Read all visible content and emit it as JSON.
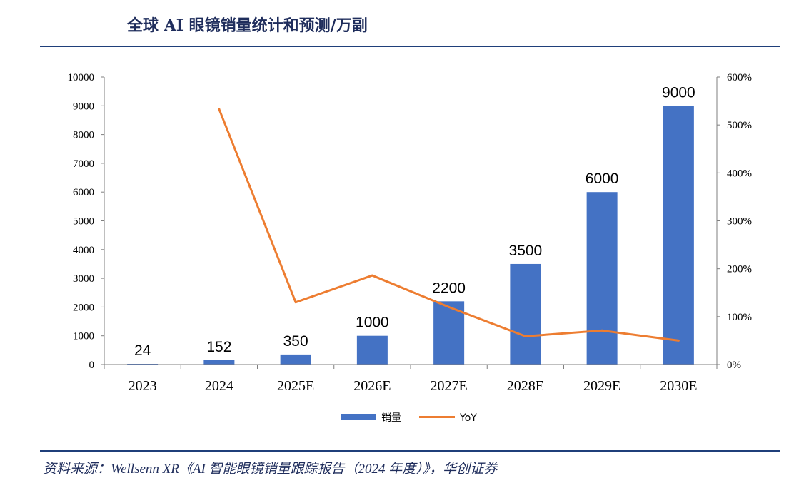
{
  "header": {
    "title": "全球 AI 眼镜销量统计和预测/万副"
  },
  "footer": {
    "source": "资料来源：Wellsenn XR《AI 智能眼镜销量跟踪报告（2024 年度）》，华创证券"
  },
  "colors": {
    "bar": "#4472c4",
    "line": "#ed7d31",
    "rule": "#1f3f7a"
  },
  "chart_data": {
    "type": "bar",
    "title": "全球 AI 眼镜销量统计和预测/万副",
    "xlabel": "",
    "ylabel": "",
    "categories": [
      "2023",
      "2024",
      "2025E",
      "2026E",
      "2027E",
      "2028E",
      "2029E",
      "2030E"
    ],
    "ylim": [
      0,
      10000
    ],
    "yticks": [
      0,
      1000,
      2000,
      3000,
      4000,
      5000,
      6000,
      7000,
      8000,
      9000,
      10000
    ],
    "y2lim": [
      0,
      600
    ],
    "y2ticks": [
      "0%",
      "100%",
      "200%",
      "300%",
      "400%",
      "500%",
      "600%"
    ],
    "y2tick_values": [
      0,
      100,
      200,
      300,
      400,
      500,
      600
    ],
    "grid": false,
    "legend": "bottom",
    "series": [
      {
        "name": "销量",
        "type": "bar",
        "axis": "left",
        "values": [
          24,
          152,
          350,
          1000,
          2200,
          3500,
          6000,
          9000
        ],
        "labels": [
          "24",
          "152",
          "350",
          "1000",
          "2200",
          "3500",
          "6000",
          "9000"
        ]
      },
      {
        "name": "YoY",
        "type": "line",
        "axis": "right",
        "values": [
          null,
          533,
          130,
          186,
          120,
          59,
          71,
          50
        ]
      }
    ]
  }
}
